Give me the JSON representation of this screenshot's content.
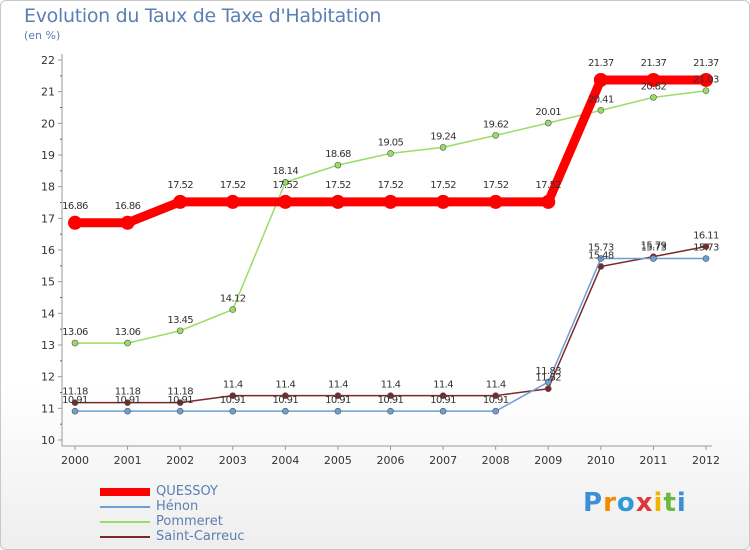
{
  "chart_data": {
    "type": "line",
    "title": "Evolution du Taux de Taxe d'Habitation",
    "subtitle": "(en %)",
    "x": [
      "2000",
      "2001",
      "2002",
      "2003",
      "2004",
      "2005",
      "2006",
      "2007",
      "2008",
      "2009",
      "2010",
      "2011",
      "2012"
    ],
    "ylim": [
      10,
      22
    ],
    "yticks": [
      10,
      11,
      12,
      13,
      14,
      15,
      16,
      17,
      18,
      19,
      20,
      21,
      22
    ],
    "grid": false,
    "legend_position": "bottom-left",
    "series": [
      {
        "name": "QUESSOY",
        "color": "#ff0000",
        "values": [
          16.86,
          16.86,
          17.52,
          17.52,
          17.52,
          17.52,
          17.52,
          17.52,
          17.52,
          17.52,
          21.37,
          21.37,
          21.37
        ],
        "labels": [
          "16.86",
          "16.86",
          "17.52",
          "17.52",
          "17.52",
          "17.52",
          "17.52",
          "17.52",
          "17.52",
          "17.52",
          "21.37",
          "21.37",
          "21.37"
        ]
      },
      {
        "name": "Hénon",
        "color": "#6e9ed6",
        "values": [
          10.91,
          10.91,
          10.91,
          10.91,
          10.91,
          10.91,
          10.91,
          10.91,
          10.91,
          11.83,
          15.73,
          15.73,
          15.73
        ],
        "labels": [
          "10.91",
          "10.91",
          "10.91",
          "10.91",
          "10.91",
          "10.91",
          "10.91",
          "10.91",
          "10.91",
          "11.83",
          "15.73",
          "15.73",
          "15.73"
        ]
      },
      {
        "name": "Pommeret",
        "color": "#99dd66",
        "values": [
          13.06,
          13.06,
          13.45,
          14.12,
          18.14,
          18.68,
          19.05,
          19.24,
          19.62,
          20.01,
          20.41,
          20.82,
          21.03
        ],
        "labels": [
          "13.06",
          "13.06",
          "13.45",
          "14.12",
          "18.14",
          "18.68",
          "19.05",
          "19.24",
          "19.62",
          "20.01",
          "20.41",
          "20.82",
          "21.03"
        ]
      },
      {
        "name": "Saint-Carreuc",
        "color": "#7a2a2a",
        "values": [
          11.18,
          11.18,
          11.18,
          11.4,
          11.4,
          11.4,
          11.4,
          11.4,
          11.4,
          11.62,
          15.48,
          15.79,
          16.11
        ],
        "labels": [
          "11.18",
          "11.18",
          "11.18",
          "11.4",
          "11.4",
          "11.4",
          "11.4",
          "11.4",
          "11.4",
          "11.62",
          "15.48",
          "15.79",
          "16.11"
        ]
      }
    ]
  },
  "logo": {
    "letters": [
      "P",
      "r",
      "o",
      "x",
      "i",
      "t",
      "i"
    ],
    "colors": [
      "#3b8fd6",
      "#f08a00",
      "#2f9ad8",
      "#e2373a",
      "#f5b400",
      "#6bb83a",
      "#3b8fd6"
    ]
  }
}
